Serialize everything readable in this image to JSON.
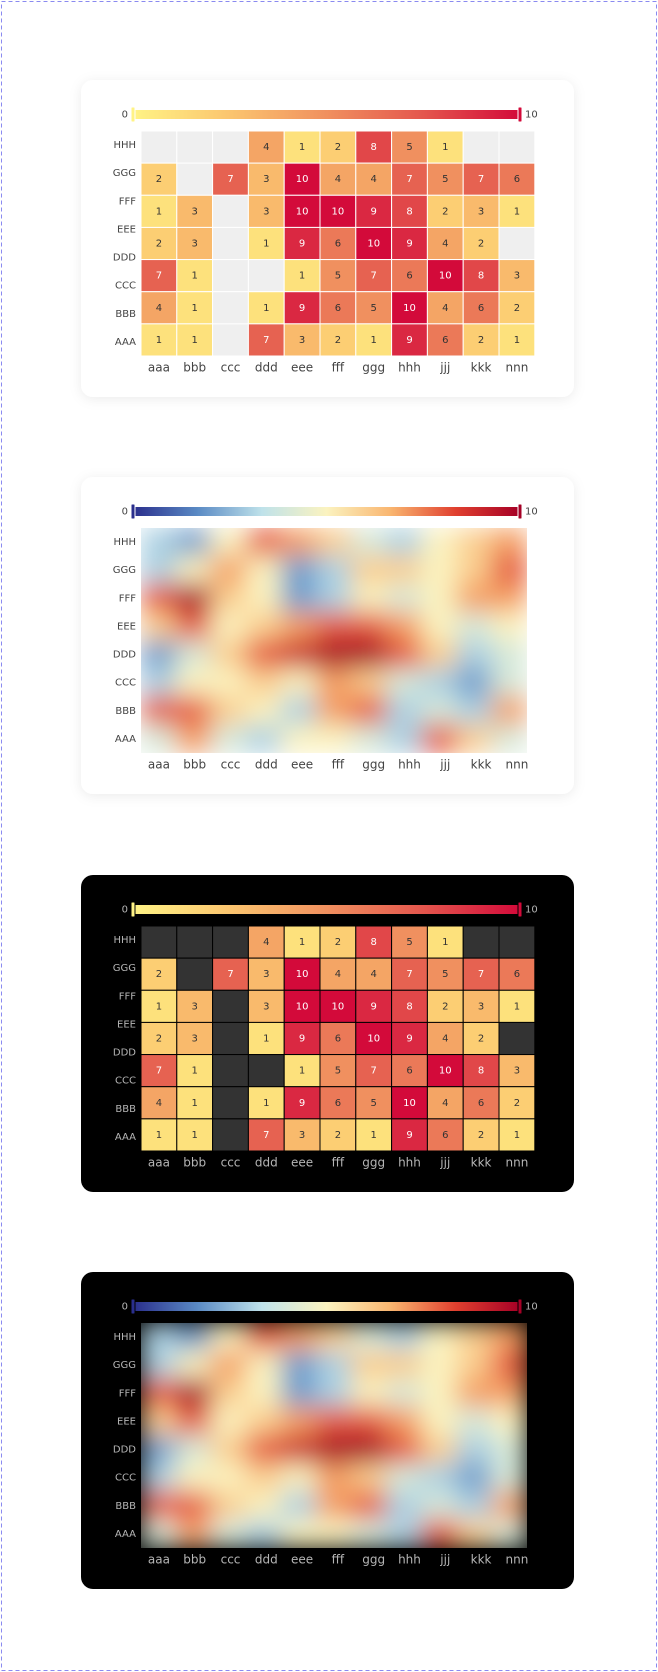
{
  "chart_data": [
    {
      "type": "heatmap",
      "theme": "light",
      "interpolate": false,
      "x": [
        "aaa",
        "bbb",
        "ccc",
        "ddd",
        "eee",
        "fff",
        "ggg",
        "hhh",
        "jjj",
        "kkk",
        "nnn"
      ],
      "y": [
        "HHH",
        "GGG",
        "FFF",
        "EEE",
        "DDD",
        "CCC",
        "BBB",
        "AAA"
      ],
      "values": [
        [
          null,
          null,
          null,
          4,
          1,
          2,
          8,
          5,
          1,
          null,
          null
        ],
        [
          2,
          null,
          7,
          3,
          10,
          4,
          4,
          7,
          5,
          7,
          6
        ],
        [
          1,
          3,
          null,
          3,
          10,
          10,
          9,
          8,
          2,
          3,
          1
        ],
        [
          2,
          3,
          null,
          1,
          9,
          6,
          10,
          9,
          4,
          2,
          null
        ],
        [
          7,
          1,
          null,
          null,
          1,
          5,
          7,
          6,
          10,
          8,
          3
        ],
        [
          4,
          1,
          null,
          1,
          9,
          6,
          5,
          10,
          4,
          6,
          2
        ],
        [
          1,
          1,
          null,
          7,
          3,
          2,
          1,
          9,
          6,
          2,
          1
        ]
      ],
      "zlim": [
        0,
        10
      ],
      "zticks": [
        0,
        10
      ],
      "colors": [
        "#fff385",
        "#fbc56f",
        "#f0905f",
        "#e4564d",
        "#d30a3a"
      ]
    },
    {
      "type": "heatmap",
      "theme": "light",
      "interpolate": true,
      "x": [
        "aaa",
        "bbb",
        "ccc",
        "ddd",
        "eee",
        "fff",
        "ggg",
        "hhh",
        "jjj",
        "kkk",
        "nnn"
      ],
      "y": [
        "HHH",
        "GGG",
        "FFF",
        "EEE",
        "DDD",
        "CCC",
        "BBB",
        "AAA"
      ],
      "values": [
        [
          3,
          2,
          5,
          8,
          7,
          6,
          4,
          3,
          5,
          6,
          7
        ],
        [
          3,
          5,
          7,
          5,
          2,
          3,
          6,
          6,
          5,
          6,
          8
        ],
        [
          8,
          10,
          6,
          5,
          2,
          3,
          5,
          4,
          5,
          7,
          7
        ],
        [
          6,
          8,
          5,
          6,
          7,
          8,
          8,
          7,
          5,
          4,
          5
        ],
        [
          2,
          4,
          6,
          8,
          9,
          10,
          10,
          8,
          6,
          3,
          4
        ],
        [
          3,
          5,
          5,
          6,
          5,
          7,
          6,
          4,
          3,
          2,
          4
        ],
        [
          8,
          8,
          6,
          5,
          3,
          7,
          8,
          3,
          4,
          3,
          7
        ],
        [
          4,
          7,
          4,
          3,
          5,
          5,
          4,
          3,
          8,
          6,
          4
        ]
      ],
      "zlim": [
        0,
        10
      ],
      "zticks": [
        0,
        10
      ],
      "colors": [
        "#2a2e8c",
        "#5a8ac4",
        "#bfe2ea",
        "#fbf3c0",
        "#f9b56f",
        "#e0402f",
        "#a50026"
      ]
    },
    {
      "type": "heatmap",
      "theme": "dark",
      "interpolate": false,
      "x": [
        "aaa",
        "bbb",
        "ccc",
        "ddd",
        "eee",
        "fff",
        "ggg",
        "hhh",
        "jjj",
        "kkk",
        "nnn"
      ],
      "y": [
        "HHH",
        "GGG",
        "FFF",
        "EEE",
        "DDD",
        "CCC",
        "BBB",
        "AAA"
      ],
      "values": [
        [
          null,
          null,
          null,
          4,
          1,
          2,
          8,
          5,
          1,
          null,
          null
        ],
        [
          2,
          null,
          7,
          3,
          10,
          4,
          4,
          7,
          5,
          7,
          6
        ],
        [
          1,
          3,
          null,
          3,
          10,
          10,
          9,
          8,
          2,
          3,
          1
        ],
        [
          2,
          3,
          null,
          1,
          9,
          6,
          10,
          9,
          4,
          2,
          null
        ],
        [
          7,
          1,
          null,
          null,
          1,
          5,
          7,
          6,
          10,
          8,
          3
        ],
        [
          4,
          1,
          null,
          1,
          9,
          6,
          5,
          10,
          4,
          6,
          2
        ],
        [
          1,
          1,
          null,
          7,
          3,
          2,
          1,
          9,
          6,
          2,
          1
        ]
      ],
      "zlim": [
        0,
        10
      ],
      "zticks": [
        0,
        10
      ],
      "colors": [
        "#fff385",
        "#fbc56f",
        "#f0905f",
        "#e4564d",
        "#d30a3a"
      ]
    },
    {
      "type": "heatmap",
      "theme": "dark",
      "interpolate": true,
      "x": [
        "aaa",
        "bbb",
        "ccc",
        "ddd",
        "eee",
        "fff",
        "ggg",
        "hhh",
        "jjj",
        "kkk",
        "nnn"
      ],
      "y": [
        "HHH",
        "GGG",
        "FFF",
        "EEE",
        "DDD",
        "CCC",
        "BBB",
        "AAA"
      ],
      "values": [
        [
          3,
          2,
          5,
          8,
          7,
          6,
          4,
          3,
          5,
          6,
          7
        ],
        [
          3,
          5,
          7,
          5,
          2,
          3,
          6,
          6,
          5,
          6,
          8
        ],
        [
          8,
          10,
          6,
          5,
          2,
          3,
          5,
          4,
          5,
          7,
          7
        ],
        [
          6,
          8,
          5,
          6,
          7,
          8,
          8,
          7,
          5,
          4,
          5
        ],
        [
          2,
          4,
          6,
          8,
          9,
          10,
          10,
          8,
          6,
          3,
          4
        ],
        [
          3,
          5,
          5,
          6,
          5,
          7,
          6,
          4,
          3,
          2,
          4
        ],
        [
          8,
          8,
          6,
          5,
          3,
          7,
          8,
          3,
          4,
          3,
          7
        ],
        [
          4,
          7,
          4,
          3,
          5,
          5,
          4,
          3,
          8,
          6,
          4
        ]
      ],
      "zlim": [
        0,
        10
      ],
      "zticks": [
        0,
        10
      ],
      "colors": [
        "#2a2e8c",
        "#5a8ac4",
        "#bfe2ea",
        "#fbf3c0",
        "#f9b56f",
        "#e0402f",
        "#a50026"
      ]
    }
  ]
}
